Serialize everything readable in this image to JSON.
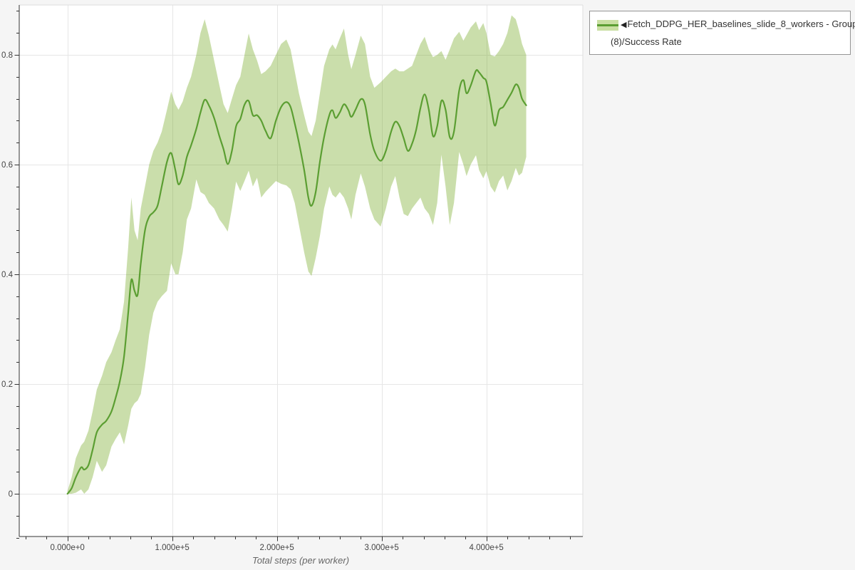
{
  "page": {
    "background_color": "#f5f5f5",
    "plot_background_color": "#ffffff"
  },
  "axis": {
    "x_title": "Total steps (per worker)"
  },
  "legend": {
    "marker_glyph": "◀",
    "label_line1": "Fetch_DDPG_HER_baselines_slide_8_workers - Group",
    "label_line2": "(8)/Success Rate"
  },
  "chart_data": {
    "type": "line",
    "title": "",
    "xlabel": "Total steps (per worker)",
    "ylabel": "",
    "grid": true,
    "legend_position": "top-right-outside",
    "xlim": [
      -46700,
      492000
    ],
    "ylim": [
      -0.078,
      0.891
    ],
    "x_tick_values": [
      0,
      100000,
      200000,
      300000,
      400000
    ],
    "x_tick_labels": [
      "0.000e+0",
      "1.000e+5",
      "2.000e+5",
      "3.000e+5",
      "4.000e+5"
    ],
    "x_minor_step": 20000,
    "x_minor_range": [
      -40000,
      480000
    ],
    "y_tick_values": [
      0,
      0.2,
      0.4,
      0.6,
      0.8
    ],
    "y_tick_labels": [
      "0",
      "0.2",
      "0.4",
      "0.6",
      "0.8"
    ],
    "y_minor_step": 0.04,
    "y_minor_range": [
      -0.08,
      0.88
    ],
    "colors": {
      "line": "#5b9e32",
      "band": "rgba(115,167,35,0.38)",
      "grid": "#e6e6e6",
      "frame_border": "#dedede",
      "axis": "#333333",
      "tick_label": "#444444",
      "axis_title": "#666666"
    },
    "series": [
      {
        "name": "Fetch_DDPG_HER_baselines_slide_8_workers - Group (8)/Success Rate",
        "x": [
          0,
          4000,
          8000,
          13000,
          16000,
          20000,
          24000,
          28000,
          33000,
          37000,
          42000,
          46000,
          50000,
          54000,
          58000,
          61000,
          64000,
          67000,
          70000,
          74000,
          78000,
          82000,
          86000,
          90000,
          95000,
          99000,
          103000,
          106000,
          110000,
          114000,
          118000,
          123000,
          127000,
          131000,
          135000,
          140000,
          145000,
          149000,
          153000,
          157000,
          161000,
          165000,
          169000,
          173000,
          177000,
          181000,
          185000,
          189000,
          194000,
          199000,
          204000,
          209000,
          213000,
          217000,
          221000,
          226000,
          230000,
          233000,
          237000,
          241000,
          245000,
          250000,
          253000,
          256000,
          260000,
          264000,
          268000,
          271000,
          275000,
          280000,
          284000,
          289000,
          293000,
          299000,
          304000,
          309000,
          313000,
          317000,
          321000,
          325000,
          329000,
          333000,
          337000,
          341000,
          345000,
          349000,
          353000,
          357000,
          361000,
          365000,
          369000,
          374000,
          378000,
          381000,
          385000,
          390000,
          393000,
          397000,
          400000,
          404000,
          408000,
          412000,
          416000,
          420000,
          424000,
          428000,
          431000,
          434000,
          438000
        ],
        "mean": [
          0.0,
          0.01,
          0.03,
          0.048,
          0.044,
          0.052,
          0.08,
          0.112,
          0.126,
          0.133,
          0.15,
          0.175,
          0.205,
          0.25,
          0.33,
          0.39,
          0.37,
          0.363,
          0.42,
          0.48,
          0.505,
          0.513,
          0.525,
          0.56,
          0.605,
          0.621,
          0.59,
          0.564,
          0.58,
          0.614,
          0.635,
          0.665,
          0.695,
          0.718,
          0.708,
          0.685,
          0.652,
          0.628,
          0.601,
          0.625,
          0.67,
          0.683,
          0.709,
          0.716,
          0.69,
          0.69,
          0.68,
          0.662,
          0.648,
          0.68,
          0.705,
          0.714,
          0.705,
          0.675,
          0.64,
          0.59,
          0.54,
          0.525,
          0.55,
          0.605,
          0.65,
          0.69,
          0.699,
          0.685,
          0.695,
          0.71,
          0.7,
          0.687,
          0.7,
          0.719,
          0.71,
          0.655,
          0.625,
          0.607,
          0.625,
          0.66,
          0.678,
          0.67,
          0.648,
          0.625,
          0.638,
          0.664,
          0.703,
          0.728,
          0.7,
          0.652,
          0.67,
          0.716,
          0.7,
          0.65,
          0.66,
          0.735,
          0.754,
          0.73,
          0.744,
          0.771,
          0.768,
          0.758,
          0.751,
          0.712,
          0.671,
          0.699,
          0.705,
          0.718,
          0.731,
          0.746,
          0.74,
          0.72,
          0.708
        ],
        "lower": [
          0.0,
          0.0,
          0.002,
          0.008,
          0.0,
          0.008,
          0.03,
          0.06,
          0.04,
          0.052,
          0.086,
          0.1,
          0.112,
          0.09,
          0.125,
          0.155,
          0.165,
          0.17,
          0.182,
          0.23,
          0.29,
          0.33,
          0.35,
          0.36,
          0.37,
          0.42,
          0.4,
          0.4,
          0.44,
          0.5,
          0.52,
          0.573,
          0.55,
          0.545,
          0.53,
          0.52,
          0.5,
          0.49,
          0.478,
          0.52,
          0.569,
          0.552,
          0.57,
          0.589,
          0.56,
          0.576,
          0.54,
          0.55,
          0.56,
          0.57,
          0.565,
          0.562,
          0.555,
          0.53,
          0.49,
          0.44,
          0.405,
          0.397,
          0.43,
          0.47,
          0.52,
          0.56,
          0.545,
          0.54,
          0.55,
          0.54,
          0.52,
          0.5,
          0.545,
          0.584,
          0.56,
          0.52,
          0.5,
          0.487,
          0.52,
          0.56,
          0.579,
          0.54,
          0.51,
          0.506,
          0.52,
          0.53,
          0.54,
          0.52,
          0.51,
          0.49,
          0.53,
          0.618,
          0.56,
          0.49,
          0.53,
          0.623,
          0.6,
          0.579,
          0.6,
          0.617,
          0.59,
          0.575,
          0.588,
          0.56,
          0.549,
          0.57,
          0.58,
          0.553,
          0.57,
          0.594,
          0.58,
          0.585,
          0.614
        ],
        "upper": [
          0.005,
          0.03,
          0.065,
          0.088,
          0.095,
          0.115,
          0.15,
          0.19,
          0.215,
          0.24,
          0.258,
          0.28,
          0.3,
          0.35,
          0.45,
          0.54,
          0.48,
          0.462,
          0.52,
          0.56,
          0.6,
          0.625,
          0.64,
          0.66,
          0.7,
          0.733,
          0.71,
          0.7,
          0.715,
          0.74,
          0.76,
          0.8,
          0.84,
          0.865,
          0.835,
          0.79,
          0.745,
          0.71,
          0.694,
          0.72,
          0.745,
          0.76,
          0.8,
          0.839,
          0.81,
          0.79,
          0.765,
          0.77,
          0.78,
          0.8,
          0.82,
          0.828,
          0.81,
          0.77,
          0.73,
          0.69,
          0.66,
          0.652,
          0.68,
          0.73,
          0.78,
          0.81,
          0.819,
          0.81,
          0.83,
          0.848,
          0.8,
          0.774,
          0.8,
          0.835,
          0.82,
          0.76,
          0.74,
          0.75,
          0.76,
          0.77,
          0.775,
          0.77,
          0.77,
          0.775,
          0.78,
          0.8,
          0.82,
          0.833,
          0.81,
          0.796,
          0.8,
          0.807,
          0.791,
          0.81,
          0.83,
          0.842,
          0.826,
          0.836,
          0.85,
          0.861,
          0.845,
          0.858,
          0.84,
          0.8,
          0.797,
          0.807,
          0.82,
          0.84,
          0.872,
          0.865,
          0.845,
          0.82,
          0.8
        ]
      }
    ]
  }
}
